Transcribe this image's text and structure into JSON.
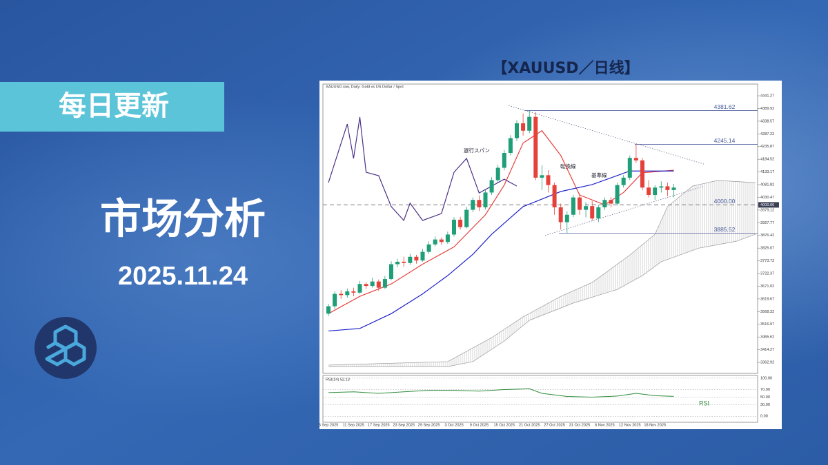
{
  "banner": {
    "tag": "每日更新",
    "title": "市场分析",
    "date": "2025.11.24",
    "chart_caption": "【XAUUSD／日线】"
  },
  "chart_data": [
    {
      "type": "candlestick",
      "title": "XAUUSD.raw, Daily: Gold vs US Dollar / Spot",
      "up_color": "#1f9e78",
      "down_color": "#e5413b",
      "categories": [
        "5 Sep 2025",
        null,
        null,
        null,
        "11 Sep 2025",
        null,
        null,
        null,
        "17 Sep 2025",
        null,
        null,
        null,
        "23 Sep 2025",
        null,
        null,
        null,
        "29 Sep 2025",
        null,
        null,
        null,
        "3 Oct 2025",
        null,
        null,
        null,
        "9 Oct 2025",
        null,
        null,
        null,
        "15 Oct 2025",
        null,
        null,
        null,
        "21 Oct 2025",
        null,
        null,
        null,
        "27 Oct 2025",
        null,
        null,
        null,
        "31 Oct 2025",
        null,
        null,
        null,
        "6 Nov 2025",
        null,
        null,
        null,
        "12 Nov 2025",
        null,
        null,
        null,
        "18 Nov 2025",
        null,
        null,
        null
      ],
      "open": [
        3560,
        3590,
        3640,
        3635,
        3650,
        3645,
        3680,
        3672,
        3690,
        3665,
        3700,
        3760,
        3770,
        3765,
        3790,
        3775,
        3810,
        3840,
        3860,
        3850,
        3880,
        3940,
        3910,
        3980,
        4020,
        3990,
        4050,
        4100,
        4150,
        4210,
        4270,
        4330,
        4300,
        4356,
        4110,
        4120,
        4080,
        3990,
        3930,
        3960,
        4030,
        3980,
        3995,
        3945,
        3990,
        4020,
        4005,
        4080,
        4110,
        4190,
        4180,
        4070,
        4040,
        4070,
        4075,
        4060
      ],
      "high": [
        3600,
        3650,
        3655,
        3662,
        3665,
        3692,
        3688,
        3705,
        3698,
        3712,
        3772,
        3782,
        3790,
        3802,
        3798,
        3822,
        3852,
        3872,
        3868,
        3892,
        3950,
        3952,
        3992,
        4030,
        4038,
        4060,
        4112,
        4162,
        4222,
        4282,
        4342,
        4370,
        4381,
        4375,
        4160,
        4140,
        4090,
        4005,
        3975,
        4040,
        4045,
        4010,
        4015,
        4000,
        4030,
        4032,
        4090,
        4120,
        4200,
        4245,
        4190,
        4100,
        4080,
        4095,
        4090,
        4085
      ],
      "low": [
        3550,
        3580,
        3620,
        3625,
        3630,
        3640,
        3660,
        3665,
        3652,
        3660,
        3695,
        3748,
        3750,
        3758,
        3762,
        3770,
        3802,
        3832,
        3838,
        3842,
        3872,
        3900,
        3905,
        3970,
        3975,
        3982,
        4040,
        4090,
        4140,
        4200,
        4258,
        4280,
        4290,
        4100,
        4060,
        4050,
        3960,
        3900,
        3885,
        3950,
        3960,
        3950,
        3935,
        3930,
        3980,
        3990,
        3998,
        4070,
        4100,
        4170,
        4060,
        4030,
        4020,
        4050,
        4035,
        4030
      ],
      "close": [
        3590,
        3640,
        3635,
        3650,
        3645,
        3680,
        3672,
        3690,
        3665,
        3700,
        3760,
        3770,
        3765,
        3790,
        3775,
        3810,
        3840,
        3860,
        3850,
        3880,
        3940,
        3910,
        3980,
        4020,
        3990,
        4050,
        4100,
        4150,
        4210,
        4270,
        4330,
        4300,
        4356,
        4110,
        4120,
        4080,
        3990,
        3930,
        3960,
        4030,
        3980,
        3995,
        3945,
        3990,
        4020,
        4005,
        4080,
        4110,
        4190,
        4180,
        4070,
        4040,
        4070,
        4075,
        4060,
        4070
      ],
      "series": [
        {
          "name": "遅行スパン",
          "color": "#4b2f86",
          "x": [
            0,
            3,
            4,
            5,
            6,
            8,
            10,
            12,
            13,
            15,
            18,
            20,
            22,
            24,
            28,
            30
          ],
          "values": [
            4090,
            4327,
            4188,
            4355,
            4132,
            4118,
            3993,
            3937,
            4007,
            3937,
            3965,
            4132,
            4188,
            4048,
            4104,
            4076
          ]
        },
        {
          "name": "転換線",
          "color": "#e5413b",
          "x": [
            0,
            5,
            10,
            15,
            20,
            25,
            28,
            31,
            34,
            37,
            40,
            44,
            47,
            50,
            55
          ],
          "values": [
            3560,
            3630,
            3680,
            3760,
            3830,
            3960,
            4080,
            4250,
            4300,
            4200,
            4040,
            4000,
            4050,
            4130,
            4140
          ]
        },
        {
          "name": "基準線",
          "color": "#1c22c8",
          "x": [
            0,
            5,
            10,
            15,
            19,
            23,
            26,
            31,
            37,
            42,
            48,
            55
          ],
          "values": [
            3490,
            3500,
            3560,
            3640,
            3714,
            3800,
            3881,
            3993,
            4054,
            4082,
            4137,
            4137
          ]
        }
      ],
      "cloud": {
        "color": "#9a9a9a",
        "edges": [
          {
            "x": [
              0,
              19,
              26,
              31,
              37,
              42,
              48,
              52,
              54,
              58,
              62,
              68
            ],
            "values": [
              3352,
              3366,
              3463,
              3547,
              3630,
              3686,
              3797,
              3881,
              3993,
              4076,
              4099,
              4090
            ]
          },
          {
            "x": [
              0,
              19,
              23,
              28,
              32,
              39,
              46,
              50,
              53,
              59,
              65,
              68
            ],
            "values": [
              3346,
              3346,
              3366,
              3449,
              3533,
              3603,
              3658,
              3714,
              3770,
              3825,
              3853,
              3881
            ]
          }
        ]
      },
      "trendlines": [
        {
          "x": [
            28.7,
            59.8
          ],
          "values": [
            4402,
            4165
          ]
        },
        {
          "x": [
            34.5,
            59.8
          ],
          "values": [
            3876,
            4076
          ]
        }
      ],
      "levels": [
        {
          "value": 4381.62,
          "style": "solid",
          "color": "#4a5a9a"
        },
        {
          "value": 4245.14,
          "style": "solid",
          "color": "#4a5a9a"
        },
        {
          "value": 4000,
          "label": "4000.00",
          "style": "dashed",
          "color": "#777777",
          "axis_marker": true
        },
        {
          "value": 3885.52,
          "style": "solid",
          "color": "#4a5a9a"
        }
      ],
      "ylim": [
        3324,
        4472
      ],
      "yticks": [
        4441.27,
        4389.92,
        4338.57,
        4287.22,
        4235.87,
        4184.52,
        4133.17,
        4081.82,
        4030.47,
        3979.12,
        3927.77,
        3876.42,
        3825.07,
        3773.72,
        3722.37,
        3671.02,
        3619.67,
        3568.32,
        3516.97,
        3465.62,
        3414.27,
        3362.92
      ]
    },
    {
      "type": "line",
      "title": "RSI(14) 52.13",
      "series": [
        {
          "name": "RSI",
          "color": "#2e8b3a",
          "x": [
            0,
            4,
            8,
            12,
            16,
            20,
            24,
            28,
            32,
            34,
            38,
            42,
            46,
            49,
            52,
            55
          ],
          "values": [
            62,
            64,
            60,
            64,
            68,
            68,
            66,
            70,
            72,
            60,
            52,
            50,
            53,
            60,
            54,
            52.13
          ]
        }
      ],
      "ylim": [
        -14,
        107
      ],
      "grid": true,
      "yticks": [
        {
          "value": 100,
          "label": "100.00"
        },
        {
          "value": 70,
          "label": "70.00"
        },
        {
          "value": 50,
          "label": "50.00"
        },
        {
          "value": 30,
          "label": "30.00"
        },
        {
          "value": 0,
          "label": "0.00"
        }
      ]
    }
  ]
}
